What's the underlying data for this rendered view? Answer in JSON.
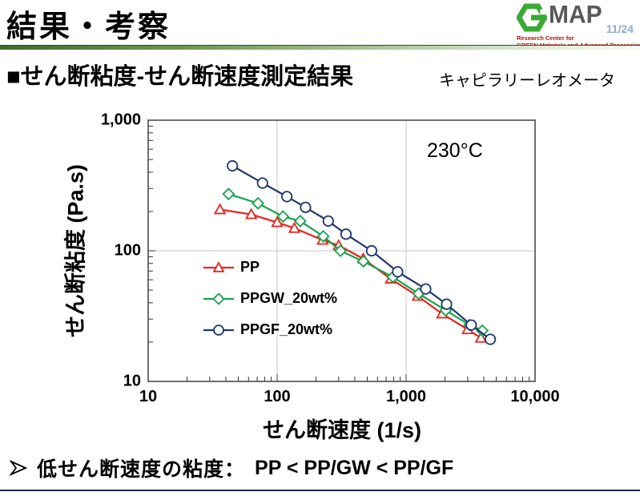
{
  "header": {
    "title": "結果・考察",
    "page_number": "11/24",
    "logo": {
      "brand": "MAP",
      "brand_color": "#595959",
      "hexagon_color": "#3aaa35",
      "tagline1": "Research Center for",
      "tagline2": "GREEN Materials and Advanced Processing",
      "tagline_color": "#b31312"
    }
  },
  "subtitle": {
    "heading": "■せん断粘度-せん断速度測定結果",
    "note": "キャピラリーレオメータ"
  },
  "chart_data": {
    "type": "line",
    "title": "",
    "xlabel": "せん断速度 (1/s)",
    "ylabel": "せん断粘度 (Pa.s)",
    "annotation": "230°C",
    "xscale": "log",
    "yscale": "log",
    "xlim": [
      10,
      10000
    ],
    "ylim": [
      10,
      1000
    ],
    "grid": true,
    "grid_color": "#c9c9c9",
    "border_color": "#4d4d4d",
    "x_gridlines": [
      100,
      1000
    ],
    "y_gridlines": [
      100
    ],
    "x_ticks": [
      {
        "v": 10,
        "label": "10"
      },
      {
        "v": 100,
        "label": "100"
      },
      {
        "v": 1000,
        "label": "1,000"
      },
      {
        "v": 10000,
        "label": "10,000"
      }
    ],
    "y_ticks": [
      {
        "v": 10,
        "label": "10"
      },
      {
        "v": 100,
        "label": "100"
      },
      {
        "v": 1000,
        "label": "1,000"
      }
    ],
    "legend_position": "inside-left-middle",
    "series": [
      {
        "name": "PP",
        "color": "#e8231d",
        "marker": "triangle",
        "x": [
          36,
          63,
          100,
          136,
          225,
          300,
          465,
          760,
          1230,
          1900,
          3000,
          3800
        ],
        "y": [
          207,
          190,
          165,
          149,
          121,
          110,
          87,
          61,
          45,
          33,
          25,
          21.5
        ]
      },
      {
        "name": "PPGW_20wt%",
        "color": "#17a24f",
        "marker": "diamond",
        "x": [
          42,
          71,
          111,
          151,
          228,
          310,
          466,
          790,
          1250,
          2030,
          3100,
          3900
        ],
        "y": [
          272,
          231,
          183,
          169,
          129,
          100,
          83,
          63,
          47,
          35,
          27,
          24.5
        ]
      },
      {
        "name": "PPGF_20wt%",
        "color": "#20386b",
        "marker": "circle",
        "x": [
          45,
          77,
          119,
          166,
          249,
          342,
          540,
          860,
          1420,
          2060,
          3200,
          4500
        ],
        "y": [
          447,
          330,
          260,
          215,
          169,
          134,
          100,
          69,
          51,
          39,
          27,
          21
        ]
      }
    ]
  },
  "footer": {
    "text": "低せん断速度の粘度：",
    "emphasis": "PP < PP/GW < PP/GF"
  }
}
